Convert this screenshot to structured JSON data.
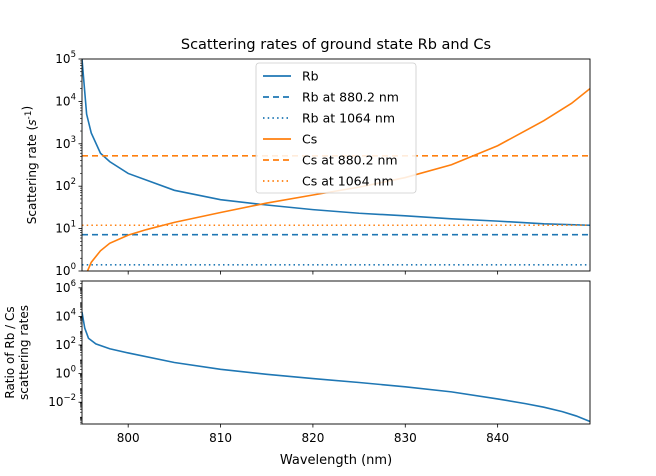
{
  "chart_data": [
    {
      "type": "line",
      "title": "Scattering rates of ground state Rb and Cs",
      "ylabel": "Scattering rate ($s^{-1}$)",
      "xlim": [
        795,
        850
      ],
      "ylim": [
        1,
        100000
      ],
      "yscale": "log",
      "yticks": [
        1,
        10,
        100,
        1000,
        10000,
        100000
      ],
      "ytick_labels": [
        {
          "base": "10",
          "exp": "0"
        },
        {
          "base": "10",
          "exp": "1"
        },
        {
          "base": "10",
          "exp": "2"
        },
        {
          "base": "10",
          "exp": "3"
        },
        {
          "base": "10",
          "exp": "4"
        },
        {
          "base": "10",
          "exp": "5"
        }
      ],
      "legend_placement": "top-center",
      "series": [
        {
          "name": "Rb",
          "color": "#1f77b4",
          "style": "solid",
          "x": [
            795,
            795.5,
            796,
            797,
            798,
            800,
            805,
            810,
            815,
            820,
            825,
            830,
            835,
            840,
            845,
            850
          ],
          "y": [
            100000,
            5000,
            1800,
            600,
            380,
            200,
            80,
            48,
            36,
            28,
            23,
            20,
            17,
            15,
            13,
            12
          ]
        },
        {
          "name": "Rb at 880.2 nm",
          "color": "#1f77b4",
          "style": "dashed",
          "x": [
            795,
            850
          ],
          "y": [
            7.2,
            7.2
          ]
        },
        {
          "name": "Rb at 1064 nm",
          "color": "#1f77b4",
          "style": "dotted",
          "x": [
            795,
            850
          ],
          "y": [
            1.4,
            1.4
          ]
        },
        {
          "name": "Cs",
          "color": "#ff7f0e",
          "style": "solid",
          "x": [
            795.6,
            796,
            797,
            798,
            800,
            802,
            805,
            810,
            815,
            820,
            825,
            830,
            835,
            840,
            845,
            848,
            850
          ],
          "y": [
            1,
            1.6,
            3,
            4.5,
            7,
            9.5,
            14,
            24,
            40,
            62,
            95,
            160,
            320,
            900,
            3500,
            9000,
            20000
          ]
        },
        {
          "name": "Cs at 880.2 nm",
          "color": "#ff7f0e",
          "style": "dashed",
          "x": [
            795,
            850
          ],
          "y": [
            520,
            520
          ]
        },
        {
          "name": "Cs at 1064 nm",
          "color": "#ff7f0e",
          "style": "dotted",
          "x": [
            795,
            850
          ],
          "y": [
            12,
            12
          ]
        }
      ]
    },
    {
      "type": "line",
      "xlabel": "Wavelength (nm)",
      "ylabel": [
        "Ratio of Rb / Cs",
        "scattering rates"
      ],
      "xlim": [
        795,
        850
      ],
      "ylim": [
        0.0003,
        3000000
      ],
      "yscale": "log",
      "xticks": [
        800,
        810,
        820,
        830,
        840
      ],
      "yticks": [
        0.01,
        1,
        100,
        10000,
        1000000
      ],
      "ytick_labels": [
        {
          "base": "10",
          "exp": "−2"
        },
        {
          "base": "10",
          "exp": "0"
        },
        {
          "base": "10",
          "exp": "2"
        },
        {
          "base": "10",
          "exp": "4"
        },
        {
          "base": "10",
          "exp": "6"
        }
      ],
      "series": [
        {
          "name": "",
          "color": "#1f77b4",
          "style": "solid",
          "x": [
            795,
            795.3,
            795.7,
            796.5,
            798,
            800,
            805,
            810,
            815,
            820,
            825,
            830,
            835,
            840,
            843,
            845,
            847,
            848.5,
            850
          ],
          "y": [
            20000,
            1500,
            300,
            120,
            55,
            28,
            6,
            2,
            0.9,
            0.45,
            0.24,
            0.12,
            0.053,
            0.017,
            0.008,
            0.0045,
            0.0022,
            0.0011,
            0.00045
          ]
        }
      ]
    }
  ]
}
